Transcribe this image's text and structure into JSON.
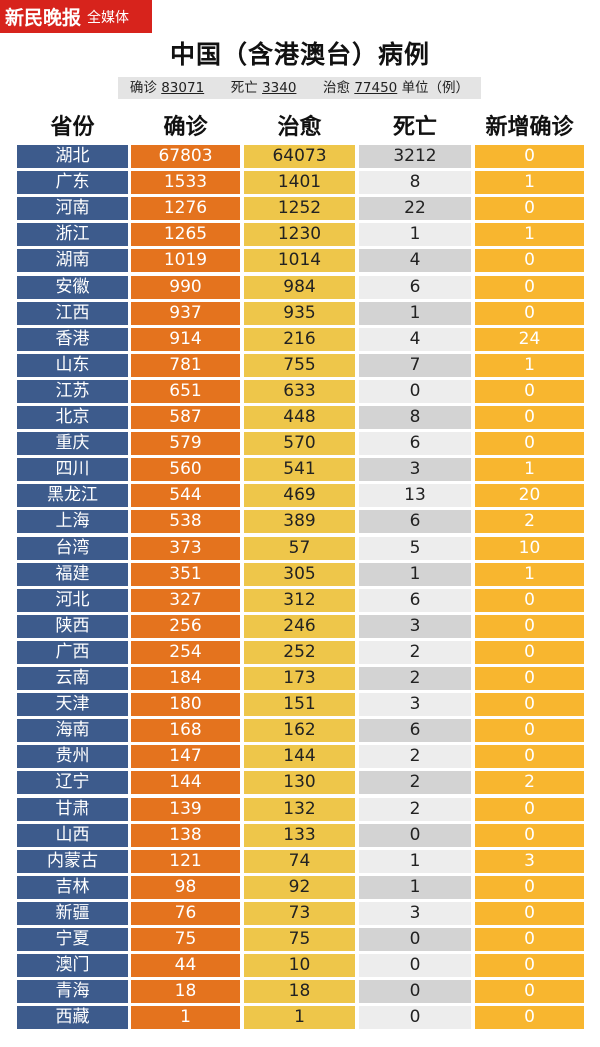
{
  "brand": {
    "logo": "新民晚报",
    "sub": "全媒体"
  },
  "title": "中国（含港澳台）病例",
  "summary": {
    "confirmed_label": "确诊",
    "confirmed_value": "83071",
    "deaths_label": "死亡",
    "deaths_value": "3340",
    "cured_label": "治愈",
    "cured_value": "77450",
    "unit": "单位（例）"
  },
  "colors": {
    "brand": "#d7231c",
    "province": "#3d5b8c",
    "confirmed": "#e4731e",
    "cured": "#eec64a",
    "deaths_dark": "#d3d3d3",
    "deaths_light": "#ededed",
    "new": "#f8b62f"
  },
  "chart_data": {
    "type": "table",
    "title": "中国（含港澳台）病例",
    "columns": [
      "省份",
      "确诊",
      "治愈",
      "死亡",
      "新增确诊"
    ],
    "rows": [
      [
        "湖北",
        67803,
        64073,
        3212,
        0
      ],
      [
        "广东",
        1533,
        1401,
        8,
        1
      ],
      [
        "河南",
        1276,
        1252,
        22,
        0
      ],
      [
        "浙江",
        1265,
        1230,
        1,
        1
      ],
      [
        "湖南",
        1019,
        1014,
        4,
        0
      ],
      [
        "安徽",
        990,
        984,
        6,
        0
      ],
      [
        "江西",
        937,
        935,
        1,
        0
      ],
      [
        "香港",
        914,
        216,
        4,
        24
      ],
      [
        "山东",
        781,
        755,
        7,
        1
      ],
      [
        "江苏",
        651,
        633,
        0,
        0
      ],
      [
        "北京",
        587,
        448,
        8,
        0
      ],
      [
        "重庆",
        579,
        570,
        6,
        0
      ],
      [
        "四川",
        560,
        541,
        3,
        1
      ],
      [
        "黑龙江",
        544,
        469,
        13,
        20
      ],
      [
        "上海",
        538,
        389,
        6,
        2
      ],
      [
        "台湾",
        373,
        57,
        5,
        10
      ],
      [
        "福建",
        351,
        305,
        1,
        1
      ],
      [
        "河北",
        327,
        312,
        6,
        0
      ],
      [
        "陕西",
        256,
        246,
        3,
        0
      ],
      [
        "广西",
        254,
        252,
        2,
        0
      ],
      [
        "云南",
        184,
        173,
        2,
        0
      ],
      [
        "天津",
        180,
        151,
        3,
        0
      ],
      [
        "海南",
        168,
        162,
        6,
        0
      ],
      [
        "贵州",
        147,
        144,
        2,
        0
      ],
      [
        "辽宁",
        144,
        130,
        2,
        2
      ],
      [
        "甘肃",
        139,
        132,
        2,
        0
      ],
      [
        "山西",
        138,
        133,
        0,
        0
      ],
      [
        "内蒙古",
        121,
        74,
        1,
        3
      ],
      [
        "吉林",
        98,
        92,
        1,
        0
      ],
      [
        "新疆",
        76,
        73,
        3,
        0
      ],
      [
        "宁夏",
        75,
        75,
        0,
        0
      ],
      [
        "澳门",
        44,
        10,
        0,
        0
      ],
      [
        "青海",
        18,
        18,
        0,
        0
      ],
      [
        "西藏",
        1,
        1,
        0,
        0
      ]
    ]
  }
}
